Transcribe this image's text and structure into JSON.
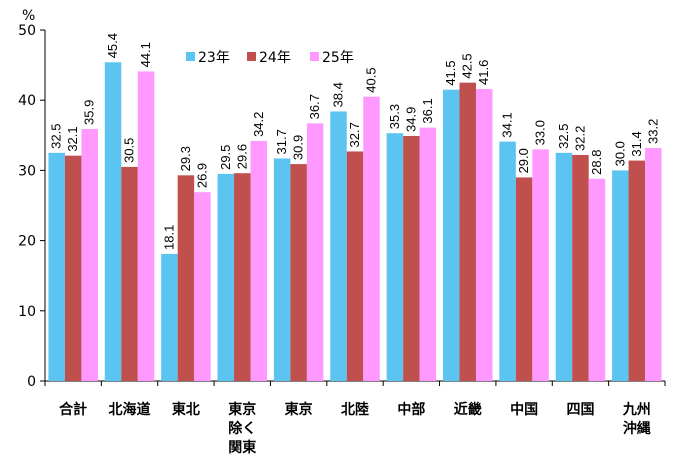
{
  "chart_data": {
    "type": "bar",
    "unit": "%",
    "ylim": [
      0,
      50
    ],
    "yticks": [
      0,
      10,
      20,
      30,
      40,
      50
    ],
    "grid": false,
    "legend_position": "top",
    "categories": [
      [
        "合計"
      ],
      [
        "北海道"
      ],
      [
        "東北"
      ],
      [
        "東京",
        "除く",
        "関東"
      ],
      [
        "東京"
      ],
      [
        "北陸"
      ],
      [
        "中部"
      ],
      [
        "近畿"
      ],
      [
        "中国"
      ],
      [
        "四国"
      ],
      [
        "九州",
        "沖縄"
      ]
    ],
    "series": [
      {
        "name": "23年",
        "color": "#5bc4f0",
        "values": [
          32.5,
          45.4,
          18.1,
          29.5,
          31.7,
          38.4,
          35.3,
          41.5,
          34.1,
          32.5,
          30.0
        ]
      },
      {
        "name": "24年",
        "color": "#c0504d",
        "values": [
          32.1,
          30.5,
          29.3,
          29.6,
          30.9,
          32.7,
          34.9,
          42.5,
          29.0,
          32.2,
          31.4
        ]
      },
      {
        "name": "25年",
        "color": "#ff99ff",
        "values": [
          35.9,
          44.1,
          26.9,
          34.2,
          36.7,
          40.5,
          36.1,
          41.6,
          33.0,
          28.8,
          33.2
        ]
      }
    ]
  }
}
